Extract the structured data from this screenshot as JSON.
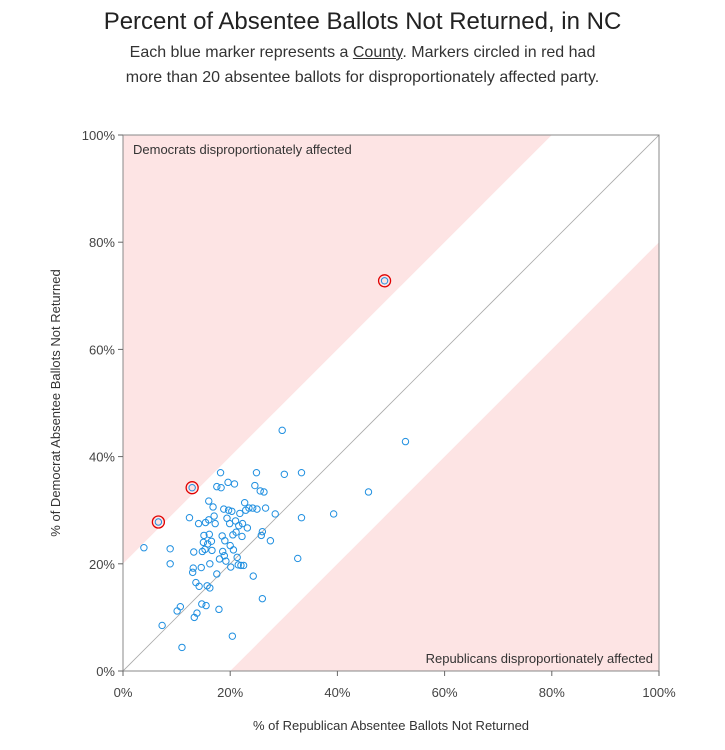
{
  "chart_data": {
    "type": "scatter",
    "title": "Percent of Absentee Ballots Not Returned, in NC",
    "subtitle_line1_before": "Each blue marker represents a ",
    "subtitle_line1_link": "County",
    "subtitle_line1_after": ". Markers circled in red had",
    "subtitle_line2": "more than 20 absentee ballots for disproportionately affected party.",
    "xlabel": "% of Republican Absentee Ballots Not Returned",
    "ylabel": "% of Democrat Absentee Ballots Not Returned",
    "xlim": [
      0,
      100
    ],
    "ylim": [
      0,
      100
    ],
    "x_ticks": [
      "0%",
      "20%",
      "40%",
      "60%",
      "80%",
      "100%"
    ],
    "y_ticks": [
      "0%",
      "20%",
      "40%",
      "60%",
      "80%",
      "100%"
    ],
    "band_offset": 20,
    "region_labels": {
      "upper": "Democrats disproportionately affected",
      "lower": "Republicans disproportionately affected"
    },
    "colors": {
      "marker": "#1f8fe0",
      "highlight": "#e00000",
      "band": "#fde4e4",
      "diagonal": "#aaaaaa"
    },
    "highlighted": [
      {
        "x": 6.6,
        "y": 27.8
      },
      {
        "x": 12.9,
        "y": 34.2
      },
      {
        "x": 48.8,
        "y": 72.8
      }
    ],
    "points": [
      {
        "x": 3.9,
        "y": 23.0
      },
      {
        "x": 6.6,
        "y": 27.8
      },
      {
        "x": 7.3,
        "y": 8.5
      },
      {
        "x": 8.8,
        "y": 22.8
      },
      {
        "x": 8.8,
        "y": 20.0
      },
      {
        "x": 10.1,
        "y": 11.2
      },
      {
        "x": 10.7,
        "y": 12.0
      },
      {
        "x": 11.0,
        "y": 4.4
      },
      {
        "x": 12.4,
        "y": 28.6
      },
      {
        "x": 12.9,
        "y": 34.2
      },
      {
        "x": 13.0,
        "y": 18.4
      },
      {
        "x": 13.1,
        "y": 19.2
      },
      {
        "x": 13.2,
        "y": 22.2
      },
      {
        "x": 13.3,
        "y": 10.0
      },
      {
        "x": 13.6,
        "y": 16.5
      },
      {
        "x": 13.8,
        "y": 10.8
      },
      {
        "x": 14.1,
        "y": 27.5
      },
      {
        "x": 14.2,
        "y": 15.8
      },
      {
        "x": 14.6,
        "y": 19.3
      },
      {
        "x": 14.7,
        "y": 12.5
      },
      {
        "x": 14.8,
        "y": 22.3
      },
      {
        "x": 15.0,
        "y": 24.0
      },
      {
        "x": 15.1,
        "y": 25.3
      },
      {
        "x": 15.3,
        "y": 22.7
      },
      {
        "x": 15.4,
        "y": 27.7
      },
      {
        "x": 15.5,
        "y": 12.2
      },
      {
        "x": 15.7,
        "y": 15.9
      },
      {
        "x": 15.8,
        "y": 23.7
      },
      {
        "x": 16.0,
        "y": 31.7
      },
      {
        "x": 16.0,
        "y": 28.2
      },
      {
        "x": 16.1,
        "y": 25.5
      },
      {
        "x": 16.2,
        "y": 20.0
      },
      {
        "x": 16.2,
        "y": 15.5
      },
      {
        "x": 16.5,
        "y": 24.2
      },
      {
        "x": 16.6,
        "y": 22.5
      },
      {
        "x": 16.8,
        "y": 30.6
      },
      {
        "x": 17.0,
        "y": 28.9
      },
      {
        "x": 17.2,
        "y": 27.5
      },
      {
        "x": 17.5,
        "y": 34.4
      },
      {
        "x": 17.5,
        "y": 18.1
      },
      {
        "x": 17.9,
        "y": 11.5
      },
      {
        "x": 18.0,
        "y": 20.9
      },
      {
        "x": 18.2,
        "y": 37.0
      },
      {
        "x": 18.3,
        "y": 34.2
      },
      {
        "x": 18.5,
        "y": 25.2
      },
      {
        "x": 18.6,
        "y": 22.3
      },
      {
        "x": 18.8,
        "y": 30.2
      },
      {
        "x": 18.9,
        "y": 21.5
      },
      {
        "x": 19.0,
        "y": 24.3
      },
      {
        "x": 19.2,
        "y": 20.5
      },
      {
        "x": 19.4,
        "y": 28.5
      },
      {
        "x": 19.6,
        "y": 35.2
      },
      {
        "x": 19.7,
        "y": 30.0
      },
      {
        "x": 19.9,
        "y": 27.5
      },
      {
        "x": 20.0,
        "y": 23.4
      },
      {
        "x": 20.1,
        "y": 19.4
      },
      {
        "x": 20.3,
        "y": 29.8
      },
      {
        "x": 20.4,
        "y": 6.5
      },
      {
        "x": 20.5,
        "y": 25.4
      },
      {
        "x": 20.6,
        "y": 22.6
      },
      {
        "x": 20.8,
        "y": 34.9
      },
      {
        "x": 21.0,
        "y": 28.0
      },
      {
        "x": 21.1,
        "y": 25.9
      },
      {
        "x": 21.3,
        "y": 21.2
      },
      {
        "x": 21.5,
        "y": 19.8
      },
      {
        "x": 21.6,
        "y": 27.1
      },
      {
        "x": 21.8,
        "y": 29.4
      },
      {
        "x": 22.0,
        "y": 19.7
      },
      {
        "x": 22.2,
        "y": 25.1
      },
      {
        "x": 22.3,
        "y": 27.5
      },
      {
        "x": 22.5,
        "y": 19.7
      },
      {
        "x": 22.7,
        "y": 31.4
      },
      {
        "x": 22.9,
        "y": 30.0
      },
      {
        "x": 23.2,
        "y": 26.7
      },
      {
        "x": 23.5,
        "y": 30.4
      },
      {
        "x": 24.2,
        "y": 30.4
      },
      {
        "x": 24.3,
        "y": 17.7
      },
      {
        "x": 24.6,
        "y": 34.6
      },
      {
        "x": 24.9,
        "y": 37.0
      },
      {
        "x": 25.0,
        "y": 30.2
      },
      {
        "x": 25.6,
        "y": 33.6
      },
      {
        "x": 25.8,
        "y": 25.3
      },
      {
        "x": 26.0,
        "y": 26.0
      },
      {
        "x": 26.0,
        "y": 13.5
      },
      {
        "x": 26.3,
        "y": 33.4
      },
      {
        "x": 26.6,
        "y": 30.4
      },
      {
        "x": 27.5,
        "y": 24.3
      },
      {
        "x": 28.4,
        "y": 29.3
      },
      {
        "x": 29.7,
        "y": 44.9
      },
      {
        "x": 30.1,
        "y": 36.7
      },
      {
        "x": 32.6,
        "y": 21.0
      },
      {
        "x": 33.3,
        "y": 37.0
      },
      {
        "x": 33.3,
        "y": 28.6
      },
      {
        "x": 39.3,
        "y": 29.3
      },
      {
        "x": 45.8,
        "y": 33.4
      },
      {
        "x": 48.8,
        "y": 72.8
      },
      {
        "x": 52.7,
        "y": 42.8
      }
    ]
  }
}
